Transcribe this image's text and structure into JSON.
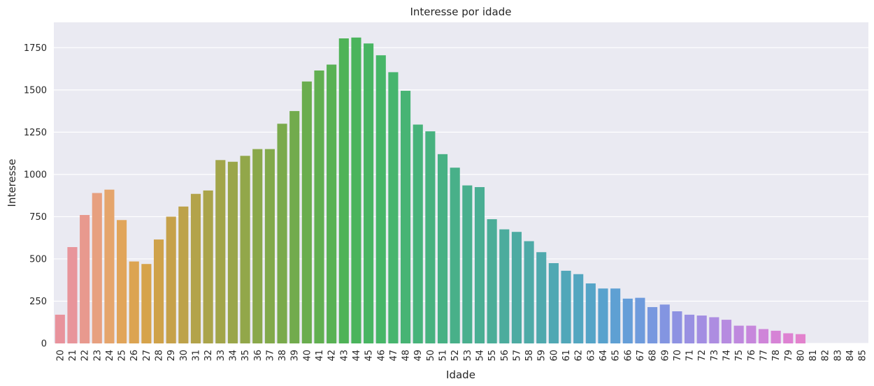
{
  "chart_data": {
    "type": "bar",
    "title": "Interesse por idade",
    "xlabel": "Idade",
    "ylabel": "Interesse",
    "ylim": [
      0,
      1900
    ],
    "yticks": [
      0,
      250,
      500,
      750,
      1000,
      1250,
      1500,
      1750
    ],
    "grid": true,
    "background": "#eaeaf2",
    "categories": [
      "20",
      "21",
      "22",
      "23",
      "24",
      "25",
      "26",
      "27",
      "28",
      "29",
      "30",
      "31",
      "32",
      "33",
      "34",
      "35",
      "36",
      "37",
      "38",
      "39",
      "40",
      "41",
      "42",
      "43",
      "44",
      "45",
      "46",
      "47",
      "48",
      "49",
      "50",
      "51",
      "52",
      "53",
      "54",
      "55",
      "56",
      "57",
      "58",
      "59",
      "60",
      "61",
      "62",
      "63",
      "64",
      "65",
      "66",
      "67",
      "68",
      "69",
      "70",
      "71",
      "72",
      "73",
      "74",
      "75",
      "76",
      "77",
      "78",
      "79",
      "80",
      "81",
      "82",
      "83",
      "84",
      "85"
    ],
    "values": [
      170,
      570,
      760,
      890,
      910,
      730,
      485,
      470,
      615,
      750,
      810,
      885,
      905,
      1085,
      1075,
      1110,
      1150,
      1150,
      1300,
      1375,
      1550,
      1615,
      1650,
      1805,
      1810,
      1775,
      1705,
      1605,
      1495,
      1295,
      1255,
      1120,
      1040,
      935,
      925,
      735,
      675,
      660,
      605,
      540,
      475,
      430,
      410,
      355,
      325,
      325,
      265,
      270,
      215,
      230,
      190,
      170,
      165,
      155,
      140,
      105,
      105,
      85,
      75,
      60,
      55,
      0,
      0,
      0,
      0,
      0
    ]
  }
}
